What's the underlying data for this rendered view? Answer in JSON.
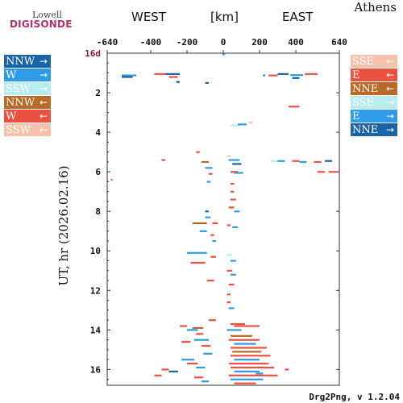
{
  "logo": {
    "top_text": "Lowell",
    "bottom_text": "DIGISONDE"
  },
  "station": "Athens",
  "header": {
    "west": "WEST",
    "units": "[km]",
    "east": "EAST"
  },
  "footer": "Drg2Png, v 1.2.04",
  "legend_left": [
    {
      "label": "NNW",
      "arrow": "→",
      "color": "#1a63a8",
      "text_color": "#ffffff"
    },
    {
      "label": "W",
      "arrow": "→",
      "color": "#2f9be6",
      "text_color": "#ffffff"
    },
    {
      "label": "SSW",
      "arrow": "→",
      "color": "#b8ecef",
      "text_color": "#ffffff"
    },
    {
      "label": "NNW",
      "arrow": "←",
      "color": "#b86a26",
      "text_color": "#ffffff"
    },
    {
      "label": "W",
      "arrow": "←",
      "color": "#ea5140",
      "text_color": "#ffffff"
    },
    {
      "label": "SSW",
      "arrow": "←",
      "color": "#f6c2ac",
      "text_color": "#ffffff"
    }
  ],
  "legend_right": [
    {
      "label": "SSE",
      "arrow": "←",
      "color": "#f6c2ac",
      "text_color": "#ffffff"
    },
    {
      "label": "E",
      "arrow": "←",
      "color": "#ea5140",
      "text_color": "#ffffff"
    },
    {
      "label": "NNE",
      "arrow": "←",
      "color": "#b86a26",
      "text_color": "#ffffff"
    },
    {
      "label": "SSE",
      "arrow": "→",
      "color": "#b8ecef",
      "text_color": "#ffffff"
    },
    {
      "label": "E",
      "arrow": "→",
      "color": "#2f9be6",
      "text_color": "#ffffff"
    },
    {
      "label": "NNE",
      "arrow": "→",
      "color": "#1a63a8",
      "text_color": "#ffffff"
    }
  ],
  "chart_data": {
    "type": "scatter",
    "title": "",
    "xlabel": "[km]",
    "ylabel": "UT, hr (2026.02.16)",
    "xlim": [
      -640,
      640
    ],
    "ylim": [
      0,
      16.8
    ],
    "y_inverted": true,
    "x_ticks": [
      -640,
      -400,
      -200,
      0,
      200,
      400,
      640
    ],
    "x_tick_labels": [
      "-640",
      "-400",
      "-200",
      "0",
      "200",
      "400",
      "640"
    ],
    "y_ticks": [
      2,
      4,
      6,
      8,
      10,
      12,
      14,
      16
    ],
    "y_tick_labels": [
      "2",
      "4",
      "6",
      "8",
      "10",
      "12",
      "14",
      "16"
    ],
    "date_tick_label": "16d",
    "date_tick_color": "#8b1a3a",
    "grid": false,
    "colors": {
      "NNW_out": "#1a63a8",
      "W_out": "#2f9be6",
      "SSW_out": "#b8ecef",
      "NNW_in": "#b86a26",
      "W_in": "#ea5140",
      "SSW_in": "#f6c2ac"
    },
    "segments": [
      {
        "x0": -560,
        "x1": -480,
        "y": 1.12,
        "c": "W_out"
      },
      {
        "x0": -560,
        "x1": -500,
        "y": 1.2,
        "c": "NNW_out"
      },
      {
        "x0": -380,
        "x1": -320,
        "y": 1.05,
        "c": "W_in"
      },
      {
        "x0": -320,
        "x1": -240,
        "y": 1.05,
        "c": "NNW_out"
      },
      {
        "x0": -300,
        "x1": -250,
        "y": 1.2,
        "c": "W_in"
      },
      {
        "x0": -260,
        "x1": -240,
        "y": 1.45,
        "c": "NNW_out"
      },
      {
        "x0": -100,
        "x1": -80,
        "y": 1.5,
        "c": "NNW_out"
      },
      {
        "x0": -5,
        "x1": 10,
        "y": 0.05,
        "c": "W_out"
      },
      {
        "x0": 220,
        "x1": 230,
        "y": 1.12,
        "c": "NNW_out"
      },
      {
        "x0": 250,
        "x1": 300,
        "y": 1.12,
        "c": "W_in"
      },
      {
        "x0": 300,
        "x1": 360,
        "y": 1.05,
        "c": "NNW_out"
      },
      {
        "x0": 370,
        "x1": 440,
        "y": 1.1,
        "c": "W_out"
      },
      {
        "x0": 450,
        "x1": 520,
        "y": 1.05,
        "c": "W_in"
      },
      {
        "x0": 380,
        "x1": 420,
        "y": 1.25,
        "c": "NNW_out"
      },
      {
        "x0": 360,
        "x1": 420,
        "y": 2.7,
        "c": "W_in"
      },
      {
        "x0": 40,
        "x1": 90,
        "y": 3.65,
        "c": "SSW_out"
      },
      {
        "x0": 80,
        "x1": 130,
        "y": 3.6,
        "c": "W_out"
      },
      {
        "x0": 140,
        "x1": 160,
        "y": 3.5,
        "c": "SSW_in"
      },
      {
        "x0": -150,
        "x1": -130,
        "y": 5.0,
        "c": "W_in"
      },
      {
        "x0": -340,
        "x1": -320,
        "y": 5.4,
        "c": "W_in"
      },
      {
        "x0": -120,
        "x1": -80,
        "y": 5.5,
        "c": "NNW_in"
      },
      {
        "x0": -100,
        "x1": -60,
        "y": 5.8,
        "c": "W_out"
      },
      {
        "x0": -80,
        "x1": -60,
        "y": 6.1,
        "c": "W_in"
      },
      {
        "x0": 20,
        "x1": 40,
        "y": 5.2,
        "c": "SSW_in"
      },
      {
        "x0": 30,
        "x1": 90,
        "y": 5.4,
        "c": "W_out"
      },
      {
        "x0": 50,
        "x1": 100,
        "y": 5.6,
        "c": "NNW_out"
      },
      {
        "x0": 40,
        "x1": 80,
        "y": 6.0,
        "c": "W_in"
      },
      {
        "x0": 60,
        "x1": 110,
        "y": 6.05,
        "c": "W_out"
      },
      {
        "x0": 260,
        "x1": 300,
        "y": 5.45,
        "c": "SSW_out"
      },
      {
        "x0": 300,
        "x1": 340,
        "y": 5.45,
        "c": "W_out"
      },
      {
        "x0": 380,
        "x1": 420,
        "y": 5.45,
        "c": "W_in"
      },
      {
        "x0": 420,
        "x1": 460,
        "y": 5.5,
        "c": "W_out"
      },
      {
        "x0": 500,
        "x1": 540,
        "y": 5.5,
        "c": "W_in"
      },
      {
        "x0": 560,
        "x1": 600,
        "y": 5.45,
        "c": "NNW_out"
      },
      {
        "x0": 580,
        "x1": 630,
        "y": 6.0,
        "c": "W_in"
      },
      {
        "x0": 520,
        "x1": 560,
        "y": 6.0,
        "c": "W_in"
      },
      {
        "x0": -620,
        "x1": -610,
        "y": 6.4,
        "c": "W_in"
      },
      {
        "x0": -90,
        "x1": -70,
        "y": 6.5,
        "c": "W_out"
      },
      {
        "x0": 40,
        "x1": 60,
        "y": 6.6,
        "c": "W_in"
      },
      {
        "x0": 40,
        "x1": 60,
        "y": 7.0,
        "c": "W_in"
      },
      {
        "x0": 40,
        "x1": 70,
        "y": 7.4,
        "c": "W_in"
      },
      {
        "x0": 30,
        "x1": 60,
        "y": 7.8,
        "c": "W_in"
      },
      {
        "x0": 60,
        "x1": 90,
        "y": 8.0,
        "c": "W_out"
      },
      {
        "x0": -100,
        "x1": -80,
        "y": 8.0,
        "c": "NNW_out"
      },
      {
        "x0": -100,
        "x1": -70,
        "y": 8.3,
        "c": "W_out"
      },
      {
        "x0": -170,
        "x1": -90,
        "y": 8.6,
        "c": "NNW_in"
      },
      {
        "x0": -60,
        "x1": -30,
        "y": 8.6,
        "c": "W_in"
      },
      {
        "x0": 20,
        "x1": 40,
        "y": 8.7,
        "c": "W_in"
      },
      {
        "x0": 50,
        "x1": 80,
        "y": 8.8,
        "c": "W_out"
      },
      {
        "x0": -130,
        "x1": -90,
        "y": 9.0,
        "c": "W_out"
      },
      {
        "x0": -70,
        "x1": -50,
        "y": 9.2,
        "c": "W_in"
      },
      {
        "x0": -60,
        "x1": -40,
        "y": 9.5,
        "c": "W_out"
      },
      {
        "x0": -200,
        "x1": -90,
        "y": 10.1,
        "c": "W_out"
      },
      {
        "x0": -180,
        "x1": -100,
        "y": 10.6,
        "c": "W_in"
      },
      {
        "x0": -70,
        "x1": -40,
        "y": 10.3,
        "c": "W_in"
      },
      {
        "x0": 20,
        "x1": 50,
        "y": 10.2,
        "c": "SSW_out"
      },
      {
        "x0": 40,
        "x1": 70,
        "y": 10.5,
        "c": "W_out"
      },
      {
        "x0": 20,
        "x1": 50,
        "y": 11.0,
        "c": "W_in"
      },
      {
        "x0": 40,
        "x1": 70,
        "y": 11.2,
        "c": "W_out"
      },
      {
        "x0": -90,
        "x1": -50,
        "y": 11.5,
        "c": "W_in"
      },
      {
        "x0": 30,
        "x1": 60,
        "y": 11.7,
        "c": "W_in"
      },
      {
        "x0": 20,
        "x1": 40,
        "y": 12.2,
        "c": "W_in"
      },
      {
        "x0": 20,
        "x1": 40,
        "y": 12.6,
        "c": "W_in"
      },
      {
        "x0": 30,
        "x1": 60,
        "y": 12.9,
        "c": "W_out"
      },
      {
        "x0": -80,
        "x1": -40,
        "y": 13.5,
        "c": "W_in"
      },
      {
        "x0": -240,
        "x1": -200,
        "y": 13.8,
        "c": "W_in"
      },
      {
        "x0": -170,
        "x1": -110,
        "y": 13.9,
        "c": "NNW_in"
      },
      {
        "x0": -200,
        "x1": -140,
        "y": 14.0,
        "c": "W_out"
      },
      {
        "x0": -150,
        "x1": -110,
        "y": 14.2,
        "c": "W_in"
      },
      {
        "x0": -160,
        "x1": -80,
        "y": 14.5,
        "c": "W_out"
      },
      {
        "x0": -230,
        "x1": -180,
        "y": 14.6,
        "c": "W_in"
      },
      {
        "x0": -120,
        "x1": -70,
        "y": 14.8,
        "c": "W_in"
      },
      {
        "x0": -110,
        "x1": -60,
        "y": 15.2,
        "c": "W_out"
      },
      {
        "x0": -230,
        "x1": -160,
        "y": 15.5,
        "c": "W_out"
      },
      {
        "x0": -200,
        "x1": -140,
        "y": 15.7,
        "c": "W_in"
      },
      {
        "x0": -150,
        "x1": -100,
        "y": 15.9,
        "c": "W_out"
      },
      {
        "x0": -340,
        "x1": -300,
        "y": 16.0,
        "c": "W_in"
      },
      {
        "x0": -300,
        "x1": -250,
        "y": 16.1,
        "c": "NNW_out"
      },
      {
        "x0": -380,
        "x1": -340,
        "y": 16.3,
        "c": "W_in"
      },
      {
        "x0": -160,
        "x1": -110,
        "y": 16.4,
        "c": "W_in"
      },
      {
        "x0": -120,
        "x1": -80,
        "y": 16.6,
        "c": "W_out"
      },
      {
        "x0": 40,
        "x1": 120,
        "y": 13.7,
        "c": "W_in"
      },
      {
        "x0": 60,
        "x1": 200,
        "y": 13.8,
        "c": "W_in"
      },
      {
        "x0": 20,
        "x1": 100,
        "y": 14.0,
        "c": "W_out"
      },
      {
        "x0": 40,
        "x1": 160,
        "y": 14.3,
        "c": "NNW_in"
      },
      {
        "x0": 30,
        "x1": 200,
        "y": 14.5,
        "c": "W_in"
      },
      {
        "x0": 60,
        "x1": 180,
        "y": 14.7,
        "c": "W_out"
      },
      {
        "x0": 40,
        "x1": 240,
        "y": 14.9,
        "c": "W_in"
      },
      {
        "x0": 50,
        "x1": 210,
        "y": 15.1,
        "c": "NNW_in"
      },
      {
        "x0": 40,
        "x1": 260,
        "y": 15.3,
        "c": "W_in"
      },
      {
        "x0": 60,
        "x1": 200,
        "y": 15.5,
        "c": "W_out"
      },
      {
        "x0": 30,
        "x1": 250,
        "y": 15.7,
        "c": "W_in"
      },
      {
        "x0": 40,
        "x1": 280,
        "y": 15.9,
        "c": "W_in"
      },
      {
        "x0": 60,
        "x1": 200,
        "y": 16.1,
        "c": "W_out"
      },
      {
        "x0": 30,
        "x1": 300,
        "y": 16.3,
        "c": "W_in"
      },
      {
        "x0": 40,
        "x1": 220,
        "y": 16.5,
        "c": "W_out"
      },
      {
        "x0": 60,
        "x1": 180,
        "y": 16.7,
        "c": "W_in"
      },
      {
        "x0": 340,
        "x1": 360,
        "y": 16.0,
        "c": "W_in"
      },
      {
        "x0": 180,
        "x1": 220,
        "y": 16.2,
        "c": "W_out"
      }
    ]
  }
}
